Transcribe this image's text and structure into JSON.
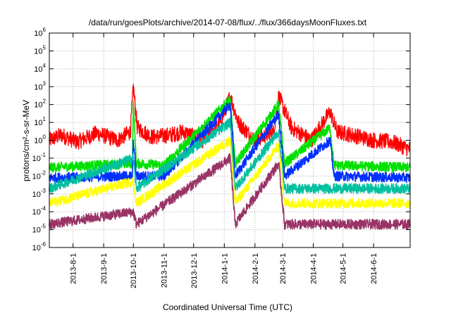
{
  "chart_data": {
    "type": "line",
    "title": "/data/run/goesPlots/archive/2014-07-08/flux/../flux/366daysMoonFluxes.txt",
    "xlabel": "Coordinated Universal Time (UTC)",
    "ylabel": "protons/cm²-s-sr-MeV",
    "yscale": "log",
    "ylim": [
      1e-06,
      1000000.0
    ],
    "xlim": [
      "2013-07-08",
      "2014-07-08"
    ],
    "grid": true,
    "x_ticks": [
      "2013-8-1",
      "2013-9-1",
      "2013-10-1",
      "2013-11-1",
      "2013-12-1",
      "2014-1-1",
      "2014-2-1",
      "2014-3-1",
      "2014-4-1",
      "2014-5-1",
      "2014-6-1"
    ],
    "y_ticks": [
      {
        "exp": "-6",
        "value": 1e-06
      },
      {
        "exp": "-5",
        "value": 1e-05
      },
      {
        "exp": "-4",
        "value": 0.0001
      },
      {
        "exp": "-3",
        "value": 0.001
      },
      {
        "exp": "-2",
        "value": 0.01
      },
      {
        "exp": "-1",
        "value": 0.1
      },
      {
        "exp": "0",
        "value": 1
      },
      {
        "exp": "1",
        "value": 10
      },
      {
        "exp": "2",
        "value": 100
      },
      {
        "exp": "3",
        "value": 1000
      },
      {
        "exp": "4",
        "value": 10000
      },
      {
        "exp": "5",
        "value": 100000
      },
      {
        "exp": "6",
        "value": 1000000
      }
    ],
    "series": [
      {
        "color": "#ff0000",
        "baseline": 1.0,
        "points": [
          [
            "2013-07-08",
            1.0
          ],
          [
            "2013-07-20",
            2.0
          ],
          [
            "2013-08-05",
            0.8
          ],
          [
            "2013-08-25",
            2.5
          ],
          [
            "2013-09-15",
            1.0
          ],
          [
            "2013-09-28",
            3.0
          ],
          [
            "2013-10-01",
            1000
          ],
          [
            "2013-10-05",
            5.0
          ],
          [
            "2013-10-20",
            1.5
          ],
          [
            "2013-11-08",
            2.0
          ],
          [
            "2013-11-20",
            3.0
          ],
          [
            "2013-12-10",
            1.0
          ],
          [
            "2013-12-28",
            10
          ],
          [
            "2014-01-07",
            300
          ],
          [
            "2014-01-15",
            10
          ],
          [
            "2014-02-01",
            1.0
          ],
          [
            "2014-02-20",
            3.0
          ],
          [
            "2014-02-25",
            300
          ],
          [
            "2014-03-10",
            5.0
          ],
          [
            "2014-03-30",
            1.0
          ],
          [
            "2014-04-18",
            40
          ],
          [
            "2014-04-25",
            3.0
          ],
          [
            "2014-05-10",
            2.0
          ],
          [
            "2014-06-01",
            1.0
          ],
          [
            "2014-06-20",
            0.8
          ],
          [
            "2014-07-08",
            0.3
          ]
        ]
      },
      {
        "color": "#00e000",
        "baseline": 0.03,
        "points": [
          [
            "2013-07-08",
            0.03
          ],
          [
            "2013-09-30",
            0.05
          ],
          [
            "2013-10-01",
            100
          ],
          [
            "2013-10-04",
            0.05
          ],
          [
            "2013-11-01",
            0.04
          ],
          [
            "2014-01-07",
            200
          ],
          [
            "2014-01-12",
            0.05
          ],
          [
            "2014-02-25",
            100
          ],
          [
            "2014-03-03",
            0.05
          ],
          [
            "2014-04-18",
            5.0
          ],
          [
            "2014-04-22",
            0.04
          ],
          [
            "2014-07-08",
            0.03
          ]
        ]
      },
      {
        "color": "#0030ff",
        "baseline": 0.008,
        "points": [
          [
            "2013-07-08",
            0.008
          ],
          [
            "2013-09-30",
            0.01
          ],
          [
            "2013-10-01",
            1.0
          ],
          [
            "2013-10-04",
            0.01
          ],
          [
            "2013-11-01",
            0.01
          ],
          [
            "2014-01-07",
            100
          ],
          [
            "2014-01-12",
            0.01
          ],
          [
            "2014-02-25",
            30
          ],
          [
            "2014-03-03",
            0.01
          ],
          [
            "2014-04-18",
            1.0
          ],
          [
            "2014-04-22",
            0.01
          ],
          [
            "2014-07-08",
            0.008
          ]
        ]
      },
      {
        "color": "#00c0a0",
        "baseline": 0.002,
        "points": [
          [
            "2013-07-08",
            0.002
          ],
          [
            "2013-10-01",
            0.1
          ],
          [
            "2013-10-04",
            0.002
          ],
          [
            "2014-01-07",
            10
          ],
          [
            "2014-01-12",
            0.002
          ],
          [
            "2014-02-25",
            3.0
          ],
          [
            "2014-03-03",
            0.002
          ],
          [
            "2014-07-08",
            0.002
          ]
        ]
      },
      {
        "color": "#ffff00",
        "baseline": 0.0003,
        "points": [
          [
            "2013-07-08",
            0.0003
          ],
          [
            "2013-10-01",
            0.005
          ],
          [
            "2013-10-04",
            0.0003
          ],
          [
            "2014-01-07",
            1.0
          ],
          [
            "2014-01-12",
            0.0003
          ],
          [
            "2014-02-25",
            0.5
          ],
          [
            "2014-03-03",
            0.0003
          ],
          [
            "2014-07-08",
            0.0003
          ]
        ]
      },
      {
        "color": "#993366",
        "baseline": 2e-05,
        "points": [
          [
            "2013-07-08",
            2e-05
          ],
          [
            "2013-10-01",
            0.0001
          ],
          [
            "2013-10-04",
            2e-05
          ],
          [
            "2014-01-07",
            0.1
          ],
          [
            "2014-01-12",
            2e-05
          ],
          [
            "2014-02-25",
            0.05
          ],
          [
            "2014-03-03",
            2e-05
          ],
          [
            "2014-07-08",
            2e-05
          ]
        ]
      }
    ]
  }
}
